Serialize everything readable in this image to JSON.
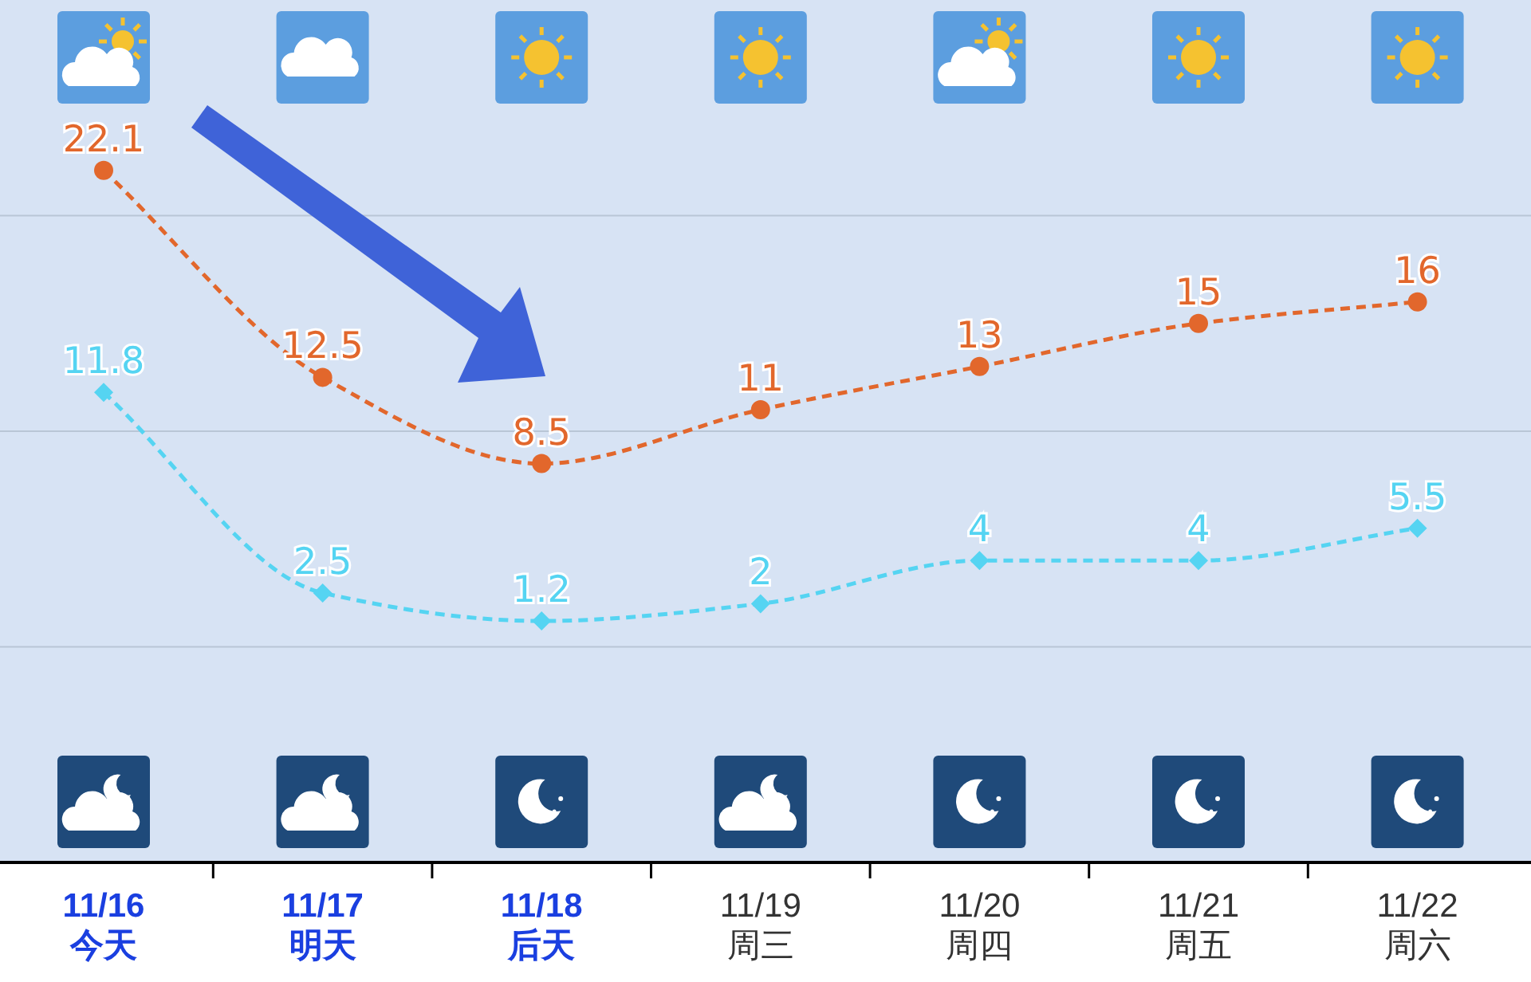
{
  "chart_data": {
    "type": "line",
    "categories": [
      "11/16\n今天",
      "11/17\n明天",
      "11/18\n后天",
      "11/19\n周三",
      "11/20\n周四",
      "11/21\n周五",
      "11/22\n周六"
    ],
    "series": [
      {
        "color": "#e2672c",
        "marker": "circle",
        "values": [
          22.1,
          12.5,
          8.5,
          11,
          13,
          15,
          16
        ]
      },
      {
        "color": "#55d4f2",
        "marker": "diamond",
        "values": [
          11.8,
          2.5,
          1.2,
          2,
          4,
          4,
          5.5
        ]
      }
    ],
    "ylim": [
      -10,
      30
    ],
    "yticks": [
      {
        "value": 0,
        "label": null
      },
      {
        "value": 10,
        "label": null
      },
      {
        "value": 20,
        "label": null
      }
    ],
    "tick_labels": "x",
    "grid": "y",
    "data_labels": true,
    "line_style": "dashed"
  }
}
